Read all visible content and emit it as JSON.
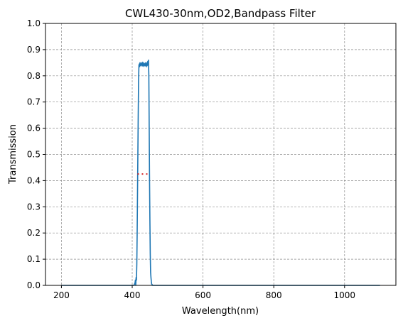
{
  "chart_data": {
    "type": "line",
    "title": "CWL430-30nm,OD2,Bandpass Filter",
    "xlabel": "Wavelength(nm)",
    "ylabel": "Transmission",
    "xlim": [
      155,
      1145
    ],
    "ylim": [
      0,
      1.0
    ],
    "x_ticks": [
      200,
      400,
      600,
      800,
      1000
    ],
    "y_ticks": [
      0.0,
      0.1,
      0.2,
      0.3,
      0.4,
      0.5,
      0.6,
      0.7,
      0.8,
      0.9,
      1.0
    ],
    "grid": true,
    "series": [
      {
        "color": "#1f77b4",
        "x": [
          200,
          405,
          408,
          409,
          410,
          411,
          412,
          413,
          414,
          415,
          416,
          417,
          418,
          419,
          420,
          421,
          422,
          423,
          424,
          425,
          426,
          427,
          428,
          429,
          430,
          431,
          432,
          433,
          434,
          435,
          436,
          437,
          438,
          439,
          440,
          441,
          442,
          443,
          444,
          445,
          446,
          447,
          448,
          449,
          450,
          451,
          452,
          453,
          454,
          455,
          458,
          1100
        ],
        "y": [
          0.0,
          0.0,
          0.01,
          0.02,
          0.0,
          0.03,
          0.02,
          0.08,
          0.2,
          0.35,
          0.5,
          0.65,
          0.78,
          0.84,
          0.845,
          0.835,
          0.85,
          0.84,
          0.845,
          0.838,
          0.85,
          0.842,
          0.846,
          0.838,
          0.852,
          0.84,
          0.845,
          0.836,
          0.848,
          0.84,
          0.845,
          0.838,
          0.85,
          0.84,
          0.845,
          0.835,
          0.85,
          0.84,
          0.855,
          0.845,
          0.86,
          0.8,
          0.6,
          0.4,
          0.25,
          0.12,
          0.05,
          0.03,
          0.015,
          0.005,
          0.0,
          0.0
        ]
      },
      {
        "style": "dotted",
        "color": "#d62728",
        "x": [
          415,
          445
        ],
        "y": [
          0.425,
          0.425
        ]
      }
    ]
  }
}
